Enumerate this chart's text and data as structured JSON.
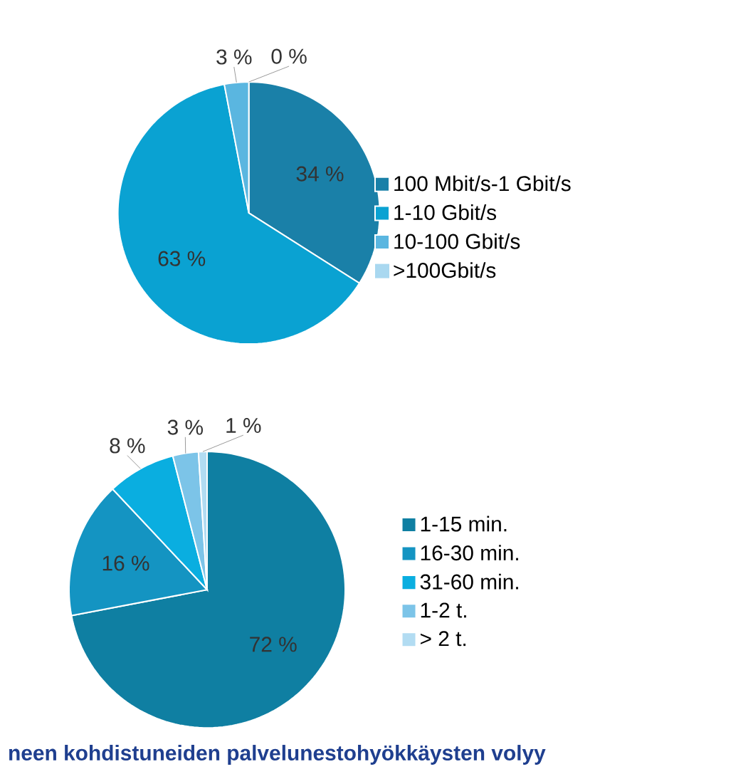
{
  "chart_data": [
    {
      "type": "pie",
      "categories": [
        "100 Mbit/s-1 Gbit/s",
        "1-10 Gbit/s",
        "10-100 Gbit/s",
        ">100Gbit/s"
      ],
      "values": [
        34,
        63,
        3,
        0
      ],
      "value_labels": [
        "34 %",
        "63 %",
        "3 %",
        "0 %"
      ],
      "colors": [
        "#1a80a8",
        "#0aa2d2",
        "#5ab6e0",
        "#a9d8f0"
      ],
      "legend": "right"
    },
    {
      "type": "pie",
      "categories": [
        "1-15 min.",
        "16-30 min.",
        "31-60 min.",
        "1-2 t.",
        "> 2 t."
      ],
      "values": [
        72,
        16,
        8,
        3,
        1
      ],
      "value_labels": [
        "72 %",
        "16 %",
        "8 %",
        "3 %",
        "1 %"
      ],
      "colors": [
        "#0f7fa2",
        "#1494c2",
        "#0aaee0",
        "#7cc4e8",
        "#b2dcf2"
      ],
      "legend": "right",
      "annotations": [
        "neen kohdistuneiden palvelunestohyökkäysten volyy"
      ]
    }
  ]
}
